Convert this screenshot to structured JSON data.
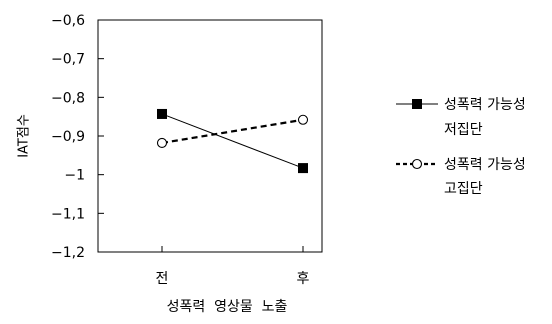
{
  "chart_data": {
    "type": "line",
    "categories": [
      "전",
      "후"
    ],
    "xlabel": "성폭력  영상물  노출",
    "ylabel": "IAT점수",
    "ylim": [
      -1.2,
      -0.6
    ],
    "yticks": [
      -0.6,
      -0.7,
      -0.8,
      -0.9,
      -1,
      -1.1,
      -1.2
    ],
    "ytick_labels": [
      "-0,6",
      "-0,7",
      "-0,8",
      "-0,9",
      "-1",
      "-1,1",
      "-1,2"
    ],
    "grid": false,
    "legend_position": "right",
    "series": [
      {
        "name_lines": [
          "성폭력 가능성",
          "저집단"
        ],
        "values": [
          -0.843,
          -0.983
        ],
        "line_style": "solid",
        "marker": "filled-square",
        "color": "#000000"
      },
      {
        "name_lines": [
          "성폭력 가능성",
          "고집단"
        ],
        "values": [
          -0.918,
          -0.858
        ],
        "line_style": "dashed",
        "marker": "open-circle",
        "color": "#000000"
      }
    ]
  }
}
